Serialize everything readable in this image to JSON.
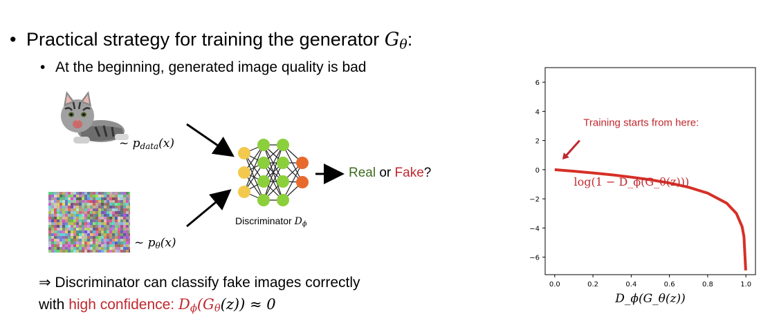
{
  "slide": {
    "bullet_main": "Practical strategy for training the generator ",
    "bullet_main_math": "G",
    "bullet_main_math_sub": "θ",
    "bullet_main_colon": ":",
    "bullet_sub": "At the beginning, generated image quality is bad",
    "pdata_label": "~ p",
    "pdata_sub": "data",
    "pdata_arg": "(x)",
    "ptheta_label": "~ p",
    "ptheta_sub": "θ",
    "ptheta_arg": "(x)",
    "disc_label": "Discriminator ",
    "disc_math": "D",
    "disc_sub": "ϕ",
    "real_word": "Real",
    "or_word": " or ",
    "fake_word": "Fake",
    "question": "?",
    "conclusion_line1": "⇒ Discriminator can classify fake images correctly",
    "conclusion_line2_prefix": "with ",
    "conclusion_line2_red": "high confidence: ",
    "conclusion_formula": "D",
    "conclusion_formula_sub": "ϕ",
    "conclusion_formula_rest": "(G",
    "conclusion_formula_sub2": "θ",
    "conclusion_formula_end": "(z)) ≈ 0"
  },
  "colors": {
    "input_node": "#f2c94c",
    "hidden_node": "#8ccf3c",
    "output_node": "#e8692c",
    "accent_red": "#c0282d",
    "accent_green": "#3f6b1e"
  },
  "icons": {
    "cat_image": "cat-photo",
    "noise_image": "random-noise-image",
    "network": "neural-network-diagram"
  },
  "chart_data": {
    "type": "line",
    "series": [
      {
        "x": [
          0.0,
          0.1,
          0.2,
          0.3,
          0.4,
          0.5,
          0.6,
          0.7,
          0.8,
          0.9,
          0.95,
          0.98,
          0.99,
          0.999
        ],
        "values": [
          0.0,
          -0.105,
          -0.223,
          -0.357,
          -0.511,
          -0.693,
          -0.916,
          -1.204,
          -1.609,
          -2.303,
          -2.996,
          -3.912,
          -4.605,
          -6.908
        ]
      }
    ],
    "xlabel": "D_ϕ(G_θ(z))",
    "xlim": [
      -0.05,
      1.05
    ],
    "ylim": [
      -7.2,
      7.0
    ],
    "xticks": [
      "0.0",
      "0.2",
      "0.4",
      "0.6",
      "0.8",
      "1.0"
    ],
    "xtick_values": [
      0.0,
      0.2,
      0.4,
      0.6,
      0.8,
      1.0
    ],
    "yticks": [
      "6",
      "4",
      "2",
      "0",
      "−2",
      "−4",
      "−6"
    ],
    "ytick_values": [
      6,
      4,
      2,
      0,
      -2,
      -4,
      -6
    ],
    "curve_label": "log(1 − D_ϕ(G_θ(z)))",
    "annotation": "Training starts from here:",
    "grid": false,
    "line_color": "#d62f26"
  }
}
